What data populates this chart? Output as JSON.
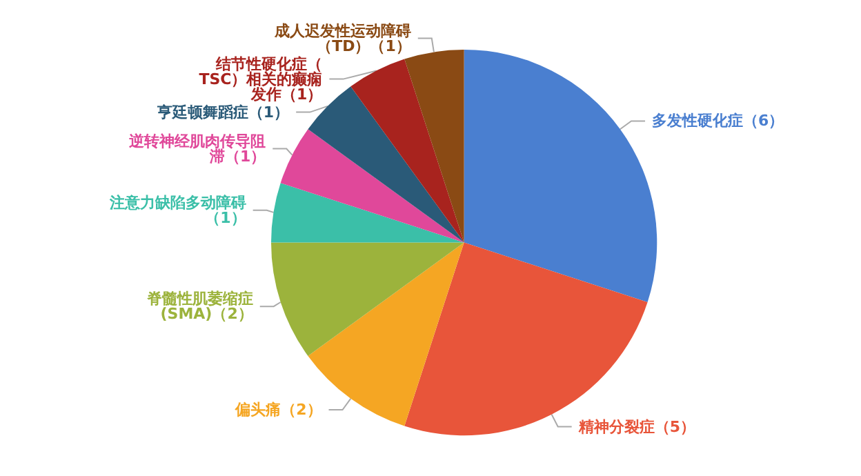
{
  "chart_data": {
    "type": "pie",
    "categories": [
      "多发性硬化症",
      "精神分裂症",
      "偏头痛",
      "脊髓性肌萎缩症(SMA)",
      "注意力缺陷多动障碍",
      "逆转神经肌肉传导阻滞",
      "亨廷顿舞蹈症",
      "结节性硬化症（TSC）相关的癫痫发作",
      "成人迟发性运动障碍（TD）"
    ],
    "values": [
      6,
      5,
      2,
      2,
      1,
      1,
      1,
      1,
      1
    ],
    "colors": [
      "#4a7fd0",
      "#e8553a",
      "#f5a623",
      "#9cb33c",
      "#3bbfa8",
      "#e0489a",
      "#2a5a78",
      "#a8231e",
      "#8a4a14"
    ],
    "value_labels": [
      "（6）",
      "（5）",
      "（2）",
      "（2）",
      "（1）",
      "（1）",
      "（1）",
      "（1）",
      "（1）"
    ],
    "legend": false
  }
}
